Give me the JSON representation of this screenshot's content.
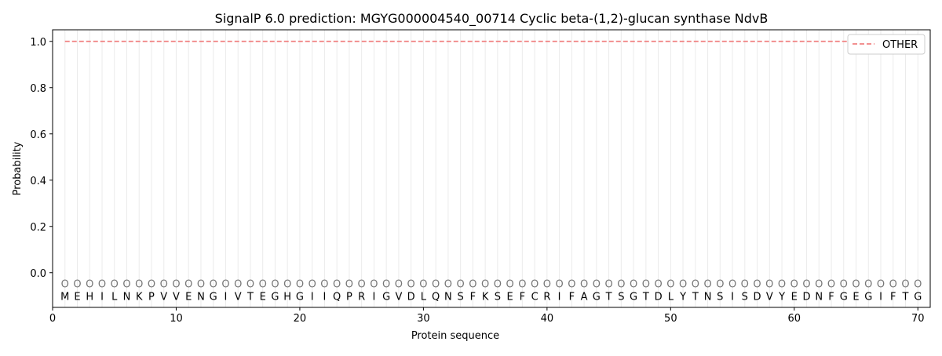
{
  "chart_data": {
    "type": "line",
    "title": "SignalP 6.0 prediction: MGYG000004540_00714 Cyclic beta-(1,2)-glucan synthase NdvB",
    "xlabel": "Protein sequence",
    "ylabel": "Probability",
    "xlim": [
      0,
      71
    ],
    "ylim": [
      -0.15,
      1.05
    ],
    "xticks": [
      0,
      10,
      20,
      30,
      40,
      50,
      60,
      70
    ],
    "yticks": [
      0.0,
      0.2,
      0.4,
      0.6,
      0.8,
      1.0
    ],
    "ytick_labels": [
      "0.0",
      "0.2",
      "0.4",
      "0.6",
      "0.8",
      "1.0"
    ],
    "grid": "vertical lines at each residue",
    "legend": {
      "placement": "top-right",
      "entries": [
        "OTHER"
      ]
    },
    "sequence": [
      "M",
      "E",
      "H",
      "I",
      "L",
      "N",
      "K",
      "P",
      "V",
      "V",
      "E",
      "N",
      "G",
      "I",
      "V",
      "T",
      "E",
      "G",
      "H",
      "G",
      "I",
      "I",
      "Q",
      "P",
      "R",
      "I",
      "G",
      "V",
      "D",
      "L",
      "Q",
      "N",
      "S",
      "F",
      "K",
      "S",
      "E",
      "F",
      "C",
      "R",
      "I",
      "F",
      "A",
      "G",
      "T",
      "S",
      "G",
      "T",
      "D",
      "L",
      "Y",
      "T",
      "N",
      "S",
      "I",
      "S",
      "D",
      "V",
      "Y",
      "E",
      "D",
      "N",
      "F",
      "G",
      "E",
      "G",
      "I",
      "F",
      "T",
      "G"
    ],
    "predicted_labels": "OOOOOOOOOOOOOOOOOOOOOOOOOOOOOOOOOOOOOOOOOOOOOOOOOOOOOOOOOOOOOOOOOOOOOO",
    "series": [
      {
        "name": "OTHER",
        "color": "#f08080",
        "style": "dashed",
        "x_start": 1,
        "x_end": 70,
        "value": 1.0
      }
    ]
  }
}
